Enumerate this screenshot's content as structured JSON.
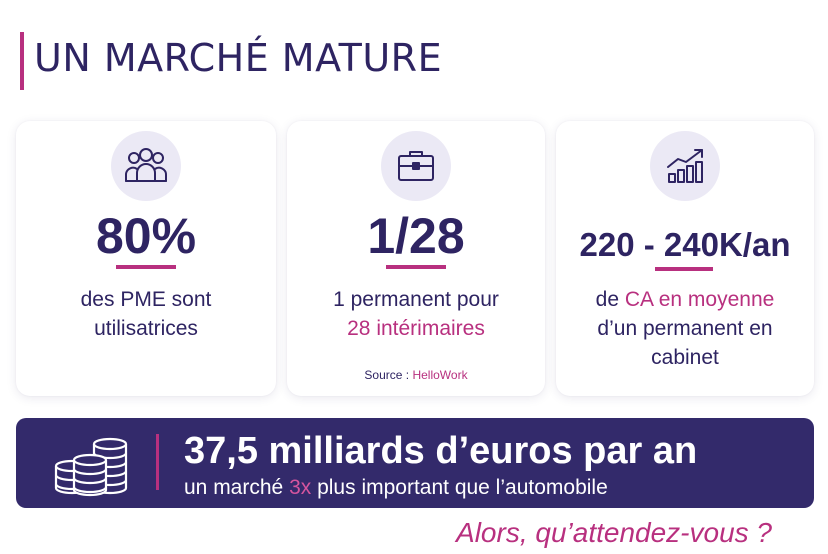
{
  "header": {
    "title": "UN MARCHÉ MATURE"
  },
  "cards": [
    {
      "icon": "people-group-icon",
      "value": "80%",
      "desc_line1": "des PME sont",
      "desc_line2": "utilisatrices"
    },
    {
      "icon": "briefcase-icon",
      "value": "1/28",
      "desc_line1": "1 permanent pour",
      "desc_line2": "28 intérimaires",
      "source_label": "Source : ",
      "source_name": "HelloWork"
    },
    {
      "icon": "growth-chart-icon",
      "value": "220 - 240K/an",
      "desc_prefix": "de ",
      "desc_highlight": "CA en moyenne",
      "desc_line2": "d’un permanent en",
      "desc_line3": "cabinet"
    }
  ],
  "banner": {
    "icon": "coins-stack-icon",
    "headline": "37,5 milliards d’euros par an",
    "sub_prefix": "un marché ",
    "sub_highlight": "3x",
    "sub_suffix": " plus important que l’automobile"
  },
  "cta": "Alors, qu’attendez-vous ?",
  "colors": {
    "navy": "#2e2462",
    "magenta": "#b8307f",
    "banner_bg": "#332a6b",
    "icon_bg": "#ebe9f5"
  }
}
